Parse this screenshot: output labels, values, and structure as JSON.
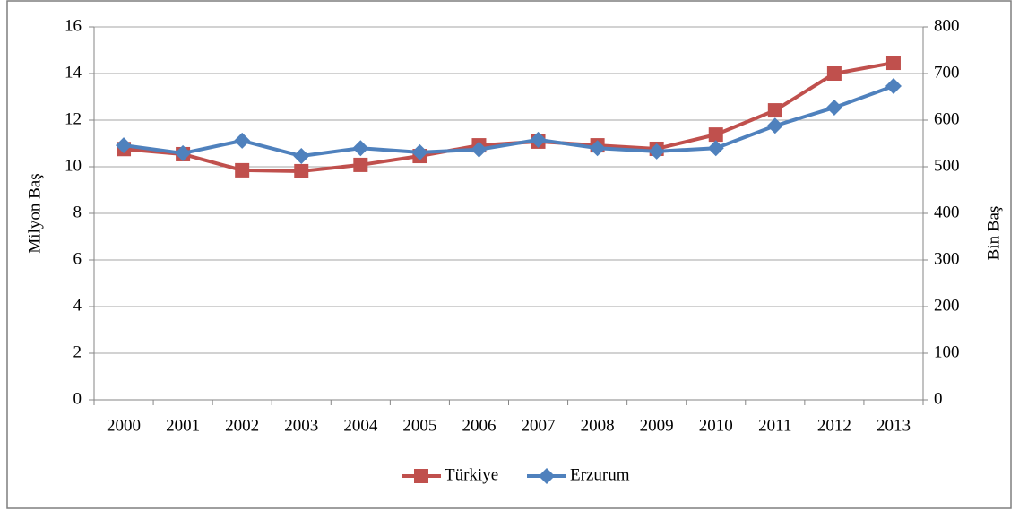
{
  "chart_data": {
    "type": "line",
    "y_label": "Milyon Baş",
    "y2_label": "Bin Baş",
    "categories": [
      "2000",
      "2001",
      "2002",
      "2003",
      "2004",
      "2005",
      "2006",
      "2007",
      "2008",
      "2009",
      "2010",
      "2011",
      "2012",
      "2013"
    ],
    "series": [
      {
        "name": "Türkiye",
        "color": "#c0504d",
        "marker": "square",
        "axis": "y",
        "values": [
          10.76,
          10.54,
          9.85,
          9.81,
          10.08,
          10.46,
          10.92,
          11.08,
          10.92,
          10.77,
          11.38,
          12.42,
          14.0,
          14.46
        ]
      },
      {
        "name": "Erzurum",
        "color": "#4f81bd",
        "marker": "diamond",
        "axis": "y2",
        "values": [
          546,
          529,
          556,
          523,
          540,
          531,
          537,
          558,
          540,
          533,
          540,
          588,
          627,
          673
        ]
      }
    ],
    "ylim": [
      0,
      16
    ],
    "yticks": [
      0,
      2,
      4,
      6,
      8,
      10,
      12,
      14,
      16
    ],
    "y2lim": [
      0,
      800
    ],
    "y2ticks": [
      0,
      100,
      200,
      300,
      400,
      500,
      600,
      700,
      800
    ],
    "grid": true,
    "legend": "bottom"
  }
}
